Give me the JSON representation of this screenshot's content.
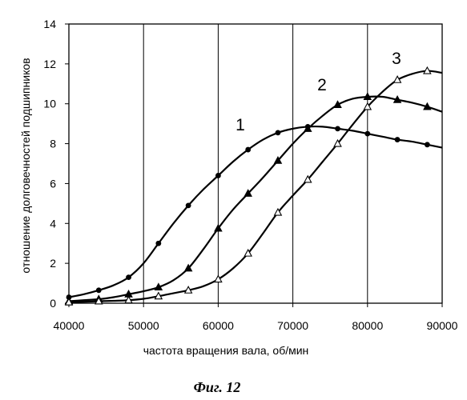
{
  "chart_data": {
    "type": "line",
    "xlabel": "частота вращения вала, об/мин",
    "ylabel": "отношение долговечностей подшипников",
    "xlim": [
      40000,
      90000
    ],
    "ylim": [
      0,
      14
    ],
    "xticks": [
      40000,
      50000,
      60000,
      70000,
      80000,
      90000
    ],
    "yticks": [
      0,
      2,
      4,
      6,
      8,
      10,
      12,
      14
    ],
    "grid": "vertical",
    "series": [
      {
        "name": "1",
        "marker": "circle-filled",
        "x": [
          40000,
          44000,
          48000,
          52000,
          56000,
          60000,
          64000,
          68000,
          72000,
          76000,
          80000,
          84000,
          88000
        ],
        "y": [
          0.3,
          0.65,
          1.3,
          3.0,
          4.9,
          6.4,
          7.7,
          8.55,
          8.85,
          8.75,
          8.5,
          8.2,
          7.95
        ],
        "curve_x": [
          40000,
          42000,
          44000,
          46000,
          48000,
          50000,
          52000,
          54000,
          56000,
          58000,
          60000,
          62000,
          64000,
          66000,
          68000,
          70000,
          72000,
          74000,
          76000,
          78000,
          80000,
          82000,
          84000,
          86000,
          88000,
          90000
        ],
        "curve_y": [
          0.3,
          0.45,
          0.65,
          0.9,
          1.3,
          2.0,
          3.0,
          4.0,
          4.9,
          5.7,
          6.4,
          7.1,
          7.7,
          8.2,
          8.55,
          8.75,
          8.85,
          8.85,
          8.75,
          8.65,
          8.5,
          8.35,
          8.2,
          8.1,
          7.95,
          7.8
        ]
      },
      {
        "name": "2",
        "marker": "triangle-filled",
        "x": [
          40000,
          44000,
          48000,
          52000,
          56000,
          60000,
          64000,
          68000,
          72000,
          76000,
          80000,
          84000,
          88000
        ],
        "y": [
          0.1,
          0.2,
          0.45,
          0.8,
          1.75,
          3.75,
          5.5,
          7.15,
          8.75,
          9.95,
          10.35,
          10.2,
          9.85
        ],
        "curve_x": [
          40000,
          42000,
          44000,
          46000,
          48000,
          50000,
          52000,
          54000,
          56000,
          58000,
          60000,
          62000,
          64000,
          66000,
          68000,
          70000,
          72000,
          74000,
          76000,
          78000,
          80000,
          82000,
          84000,
          86000,
          88000,
          90000
        ],
        "curve_y": [
          0.1,
          0.15,
          0.2,
          0.3,
          0.45,
          0.6,
          0.8,
          1.15,
          1.75,
          2.7,
          3.75,
          4.7,
          5.5,
          6.3,
          7.15,
          8.0,
          8.75,
          9.4,
          9.95,
          10.25,
          10.35,
          10.35,
          10.2,
          10.05,
          9.85,
          9.6
        ]
      },
      {
        "name": "3",
        "marker": "triangle-open",
        "x": [
          40000,
          44000,
          48000,
          52000,
          56000,
          60000,
          64000,
          68000,
          72000,
          76000,
          80000,
          84000,
          88000
        ],
        "y": [
          0.05,
          0.1,
          0.15,
          0.35,
          0.65,
          1.2,
          2.5,
          4.55,
          6.2,
          8.0,
          9.85,
          11.2,
          11.65
        ],
        "curve_x": [
          40000,
          42000,
          44000,
          46000,
          48000,
          50000,
          52000,
          54000,
          56000,
          58000,
          60000,
          62000,
          64000,
          66000,
          68000,
          70000,
          72000,
          74000,
          76000,
          78000,
          80000,
          82000,
          84000,
          86000,
          88000,
          90000
        ],
        "curve_y": [
          0.05,
          0.07,
          0.1,
          0.12,
          0.15,
          0.22,
          0.35,
          0.5,
          0.65,
          0.85,
          1.2,
          1.75,
          2.5,
          3.5,
          4.55,
          5.4,
          6.2,
          7.1,
          8.0,
          8.95,
          9.85,
          10.6,
          11.2,
          11.5,
          11.65,
          11.55
        ]
      }
    ]
  },
  "caption": "Фиг. 12"
}
